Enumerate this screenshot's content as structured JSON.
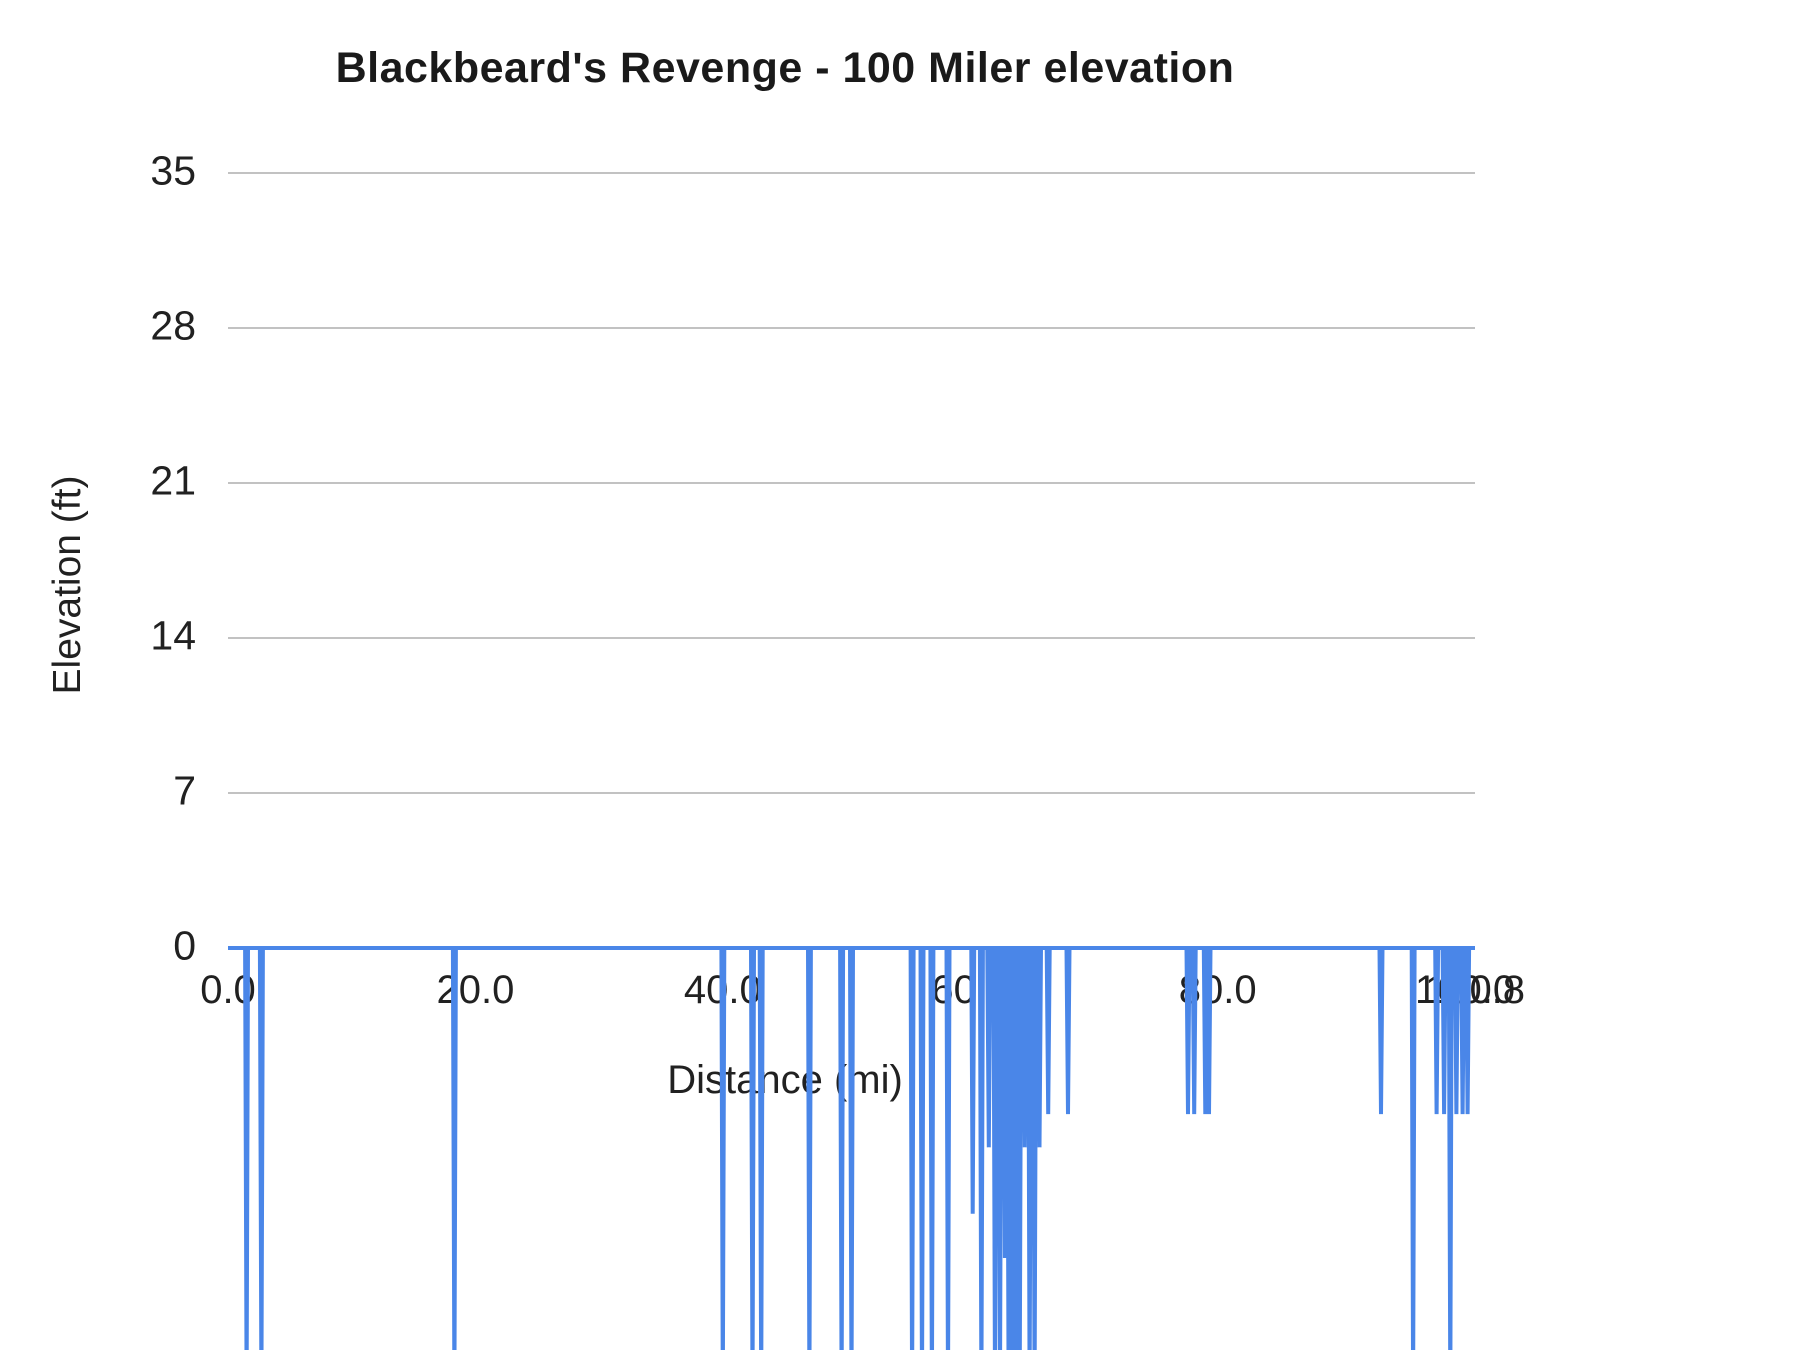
{
  "chart_data": {
    "type": "line",
    "title": "Blackbeard's Revenge - 100 Miler elevation",
    "xlabel": "Distance (mi)",
    "ylabel": "Elevation (ft)",
    "line_color": "#4a86e8",
    "gridline_color": "#c2c2c2",
    "legend_position": "none",
    "grid": true,
    "x_axis": {
      "min": 0,
      "max": 100.8,
      "ticks": [
        {
          "value": 0,
          "label": "0.0"
        },
        {
          "value": 20,
          "label": "20.0"
        },
        {
          "value": 40,
          "label": "40.0"
        },
        {
          "value": 60,
          "label": "60.0"
        },
        {
          "value": 80,
          "label": "80.0"
        },
        {
          "value": 100,
          "label": "100.0"
        },
        {
          "value": 100.8,
          "label": "100.8"
        }
      ]
    },
    "y_axis": {
      "visible_min": 0,
      "visible_max": 35,
      "ticks": [
        35,
        28,
        21,
        14,
        7,
        0
      ]
    },
    "points": [
      [
        0.0,
        0
      ],
      [
        1.38,
        0
      ],
      [
        1.5,
        -20
      ],
      [
        1.62,
        0
      ],
      [
        2.58,
        0
      ],
      [
        2.7,
        -20
      ],
      [
        2.82,
        0
      ],
      [
        18.18,
        0
      ],
      [
        18.3,
        -20
      ],
      [
        18.42,
        0
      ],
      [
        39.88,
        0
      ],
      [
        40.0,
        -20
      ],
      [
        40.12,
        0
      ],
      [
        42.28,
        0
      ],
      [
        42.4,
        -20
      ],
      [
        42.52,
        0
      ],
      [
        42.98,
        0
      ],
      [
        43.1,
        -20
      ],
      [
        43.22,
        0
      ],
      [
        46.88,
        0
      ],
      [
        47.0,
        -20
      ],
      [
        47.12,
        0
      ],
      [
        49.48,
        0
      ],
      [
        49.6,
        -20
      ],
      [
        49.72,
        0
      ],
      [
        50.28,
        0
      ],
      [
        50.4,
        -20
      ],
      [
        50.52,
        0
      ],
      [
        55.18,
        0
      ],
      [
        55.3,
        -20
      ],
      [
        55.42,
        0
      ],
      [
        55.98,
        0
      ],
      [
        56.1,
        -20
      ],
      [
        56.22,
        0
      ],
      [
        56.78,
        0
      ],
      [
        56.9,
        -20
      ],
      [
        57.02,
        0
      ],
      [
        58.08,
        0
      ],
      [
        58.2,
        -20
      ],
      [
        58.32,
        0
      ],
      [
        60.08,
        0
      ],
      [
        60.2,
        -12
      ],
      [
        60.32,
        0
      ],
      [
        60.78,
        0
      ],
      [
        60.9,
        -20
      ],
      [
        61.02,
        0
      ],
      [
        61.38,
        0
      ],
      [
        61.5,
        -9
      ],
      [
        61.62,
        0
      ],
      [
        61.88,
        0
      ],
      [
        62.0,
        -20
      ],
      [
        62.12,
        0
      ],
      [
        62.28,
        0
      ],
      [
        62.4,
        -20
      ],
      [
        62.52,
        0
      ],
      [
        62.68,
        0
      ],
      [
        62.8,
        -14
      ],
      [
        62.92,
        0
      ],
      [
        62.98,
        0
      ],
      [
        63.1,
        -20
      ],
      [
        63.22,
        0
      ],
      [
        63.28,
        0
      ],
      [
        63.4,
        -20
      ],
      [
        63.52,
        0
      ],
      [
        63.58,
        0
      ],
      [
        63.7,
        -20
      ],
      [
        63.82,
        0
      ],
      [
        63.88,
        0
      ],
      [
        64.0,
        -20
      ],
      [
        64.12,
        0
      ],
      [
        64.28,
        0
      ],
      [
        64.4,
        -9
      ],
      [
        64.52,
        0
      ],
      [
        64.68,
        0
      ],
      [
        64.8,
        -20
      ],
      [
        64.92,
        0
      ],
      [
        65.08,
        0
      ],
      [
        65.2,
        -20
      ],
      [
        65.32,
        0
      ],
      [
        65.48,
        0
      ],
      [
        65.6,
        -9
      ],
      [
        65.72,
        0
      ],
      [
        66.18,
        0
      ],
      [
        66.3,
        -7.5
      ],
      [
        66.42,
        0
      ],
      [
        67.78,
        0
      ],
      [
        67.9,
        -7.5
      ],
      [
        68.02,
        0
      ],
      [
        77.48,
        0
      ],
      [
        77.6,
        -7.5
      ],
      [
        77.72,
        0
      ],
      [
        77.98,
        0
      ],
      [
        78.1,
        -7.5
      ],
      [
        78.22,
        0
      ],
      [
        78.88,
        0
      ],
      [
        79.0,
        -7.5
      ],
      [
        79.12,
        0
      ],
      [
        79.18,
        0
      ],
      [
        79.3,
        -7.5
      ],
      [
        79.42,
        0
      ],
      [
        93.08,
        0
      ],
      [
        93.2,
        -7.5
      ],
      [
        93.32,
        0
      ],
      [
        95.68,
        0
      ],
      [
        95.8,
        -20
      ],
      [
        95.92,
        0
      ],
      [
        97.58,
        0
      ],
      [
        97.7,
        -7.5
      ],
      [
        97.82,
        0
      ],
      [
        98.18,
        0
      ],
      [
        98.3,
        -7.5
      ],
      [
        98.42,
        0
      ],
      [
        98.68,
        0
      ],
      [
        98.8,
        -20
      ],
      [
        98.92,
        0
      ],
      [
        99.18,
        0
      ],
      [
        99.3,
        -7.5
      ],
      [
        99.42,
        0
      ],
      [
        99.68,
        0
      ],
      [
        99.8,
        -7.5
      ],
      [
        99.92,
        0
      ],
      [
        100.08,
        0
      ],
      [
        100.2,
        -7.5
      ],
      [
        100.32,
        0
      ],
      [
        100.8,
        0
      ]
    ]
  }
}
